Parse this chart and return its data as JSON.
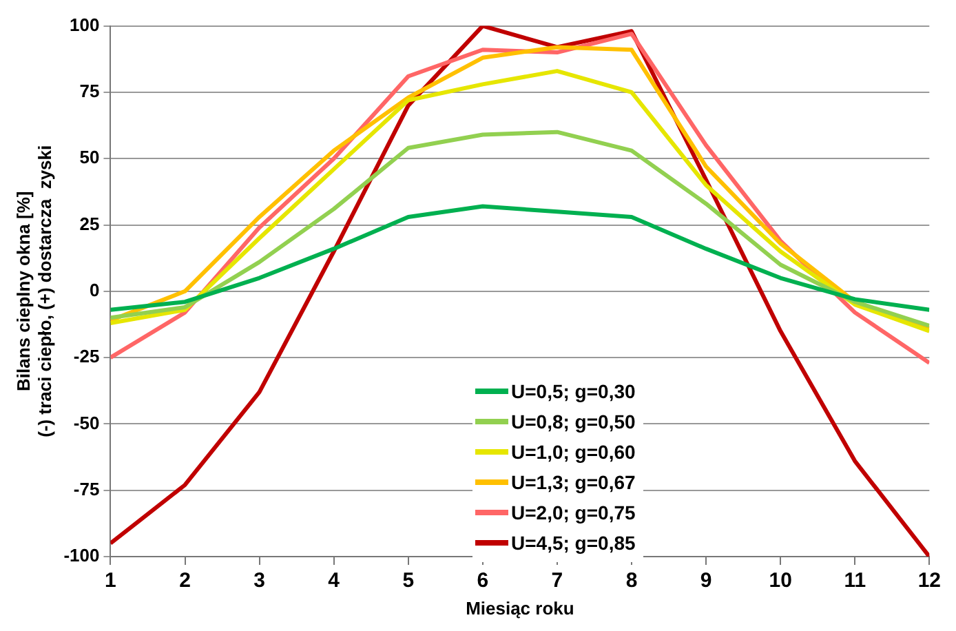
{
  "chart_data": {
    "type": "line",
    "xlabel": "Miesiąc roku",
    "ylabel": "Bilans cieplny okna [%]\n(-) traci ciepło, (+) dostarcza  zyski",
    "x": [
      1,
      2,
      3,
      4,
      5,
      6,
      7,
      8,
      9,
      10,
      11,
      12
    ],
    "xlim": [
      1,
      12
    ],
    "xticks": [
      1,
      2,
      3,
      4,
      5,
      6,
      7,
      8,
      9,
      10,
      11,
      12
    ],
    "ylim": [
      -100,
      100
    ],
    "yticks": [
      -100,
      -75,
      -50,
      -25,
      0,
      25,
      50,
      75,
      100
    ],
    "grid": "y",
    "legend": "bottom",
    "marker": "none",
    "line_style": "solid",
    "series": [
      {
        "name": "U=0,5; g=0,30",
        "color": "#00b050",
        "values": [
          -7,
          -4,
          5,
          16,
          28,
          32,
          30,
          28,
          16,
          5,
          -3,
          -7
        ]
      },
      {
        "name": "U=0,8; g=0,50",
        "color": "#92d050",
        "values": [
          -10,
          -6,
          11,
          31,
          54,
          59,
          60,
          53,
          33,
          10,
          -4,
          -13
        ]
      },
      {
        "name": "U=1,0; g=0,60",
        "color": "#e6e600",
        "values": [
          -12,
          -7,
          20,
          46,
          72,
          78,
          83,
          75,
          40,
          15,
          -5,
          -15
        ]
      },
      {
        "name": "U=1,3; g=0,67",
        "color": "#ffc000",
        "values": [
          -11,
          0,
          28,
          53,
          73,
          88,
          92,
          91,
          47,
          18,
          -4,
          -14
        ]
      },
      {
        "name": "U=2,0; g=0,75",
        "color": "#ff6666",
        "values": [
          -25,
          -8,
          24,
          50,
          81,
          91,
          90,
          97,
          55,
          19,
          -8,
          -27
        ]
      },
      {
        "name": "U=4,5; g=0,85",
        "color": "#c00000",
        "values": [
          -95,
          -73,
          -38,
          15,
          70,
          100,
          92,
          98,
          42,
          -15,
          -64,
          -100
        ]
      }
    ]
  }
}
